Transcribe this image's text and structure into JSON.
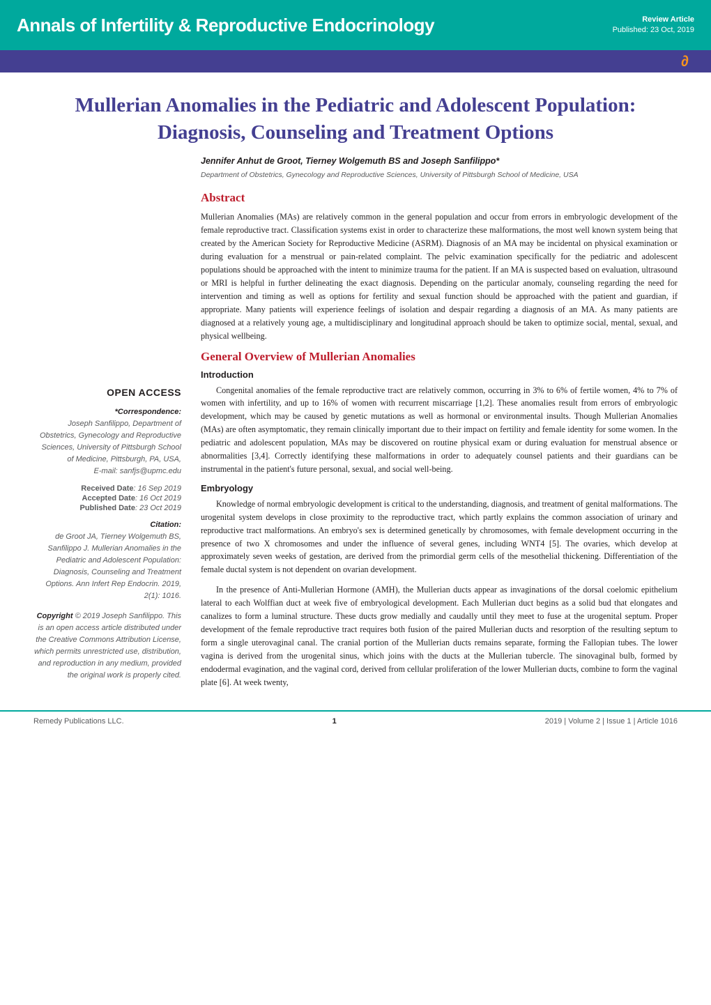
{
  "header": {
    "journal": "Annals of Infertility & Reproductive Endocrinology",
    "article_type": "Review Article",
    "published_line": "Published: 23 Oct, 2019",
    "oa_glyph": "∂"
  },
  "title": "Mullerian Anomalies in the Pediatric and Adolescent Population: Diagnosis, Counseling and Treatment Options",
  "authors": "Jennifer Anhut de Groot, Tierney Wolgemuth BS and Joseph Sanfilippo*",
  "affiliation": "Department of Obstetrics, Gynecology and Reproductive Sciences, University of Pittsburgh School of Medicine, USA",
  "abstract": {
    "heading": "Abstract",
    "text": "Mullerian Anomalies (MAs) are relatively common in the general population and occur from errors in embryologic development of the female reproductive tract. Classification systems exist in order to characterize these malformations, the most well known system being that created by the American Society for Reproductive Medicine (ASRM). Diagnosis of an MA may be incidental on physical examination or during evaluation for a menstrual or pain-related complaint. The pelvic examination specifically for the pediatric and adolescent populations should be approached with the intent to minimize trauma for the patient. If an MA is suspected based on evaluation, ultrasound or MRI is helpful in further delineating the exact diagnosis. Depending on the particular anomaly, counseling regarding the need for intervention and timing as well as options for fertility and sexual function should be approached with the patient and guardian, if appropriate. Many patients will experience feelings of isolation and despair regarding a diagnosis of an MA. As many patients are diagnosed at a relatively young age, a multidisciplinary and longitudinal approach should be taken to optimize social, mental, sexual, and physical wellbeing."
  },
  "overview": {
    "heading": "General Overview of Mullerian Anomalies",
    "intro_label": "Introduction",
    "intro_text": "Congenital anomalies of the female reproductive tract are relatively common, occurring in 3% to 6% of fertile women, 4% to 7% of women with infertility, and up to 16% of women with recurrent miscarriage [1,2]. These anomalies result from errors of embryologic development, which may be caused by genetic mutations as well as hormonal or environmental insults. Though Mullerian Anomalies (MAs) are often asymptomatic, they remain clinically important due to their impact on fertility and female identity for some women. In the pediatric and adolescent population, MAs may be discovered on routine physical exam or during evaluation for menstrual absence or abnormalities [3,4]. Correctly identifying these malformations in order to adequately counsel patients and their guardians can be instrumental in the patient's future personal, sexual, and social well-being.",
    "embryology_label": "Embryology",
    "embryology_p1": "Knowledge of normal embryologic development is critical to the understanding, diagnosis, and treatment of genital malformations. The urogenital system develops in close proximity to the reproductive tract, which partly explains the common association of urinary and reproductive tract malformations. An embryo's sex is determined genetically by chromosomes, with female development occurring in the presence of two X chromosomes and under the influence of several genes, including WNT4 [5]. The ovaries, which develop at approximately seven weeks of gestation, are derived from the primordial germ cells of the mesothelial thickening. Differentiation of the female ductal system is not dependent on ovarian development.",
    "embryology_p2": "In the presence of Anti-Mullerian Hormone (AMH), the Mullerian ducts appear as invaginations of the dorsal coelomic epithelium lateral to each Wolffian duct at week five of embryological development. Each Mullerian duct begins as a solid bud that elongates and canalizes to form a luminal structure. These ducts grow medially and caudally until they meet to fuse at the urogenital septum. Proper development of the female reproductive tract requires both fusion of the paired Mullerian ducts and resorption of the resulting septum to form a single uterovaginal canal. The cranial portion of the Mullerian ducts remains separate, forming the Fallopian tubes. The lower vagina is derived from the urogenital sinus, which joins with the ducts at the Mullerian tubercle. The sinovaginal bulb, formed by endodermal evagination, and the vaginal cord, derived from cellular proliferation of the lower Mullerian ducts, combine to form the vaginal plate [6]. At week twenty,"
  },
  "sidebar": {
    "open_access": "OPEN ACCESS",
    "correspondence_label": "*Correspondence:",
    "correspondence_body": "Joseph Sanfilippo, Department of Obstetrics, Gynecology and Reproductive Sciences, University of Pittsburgh School of Medicine, Pittsburgh, PA, USA,",
    "email_label": "E-mail:",
    "email_value": "sanfjs@upmc.edu",
    "received_label": "Received Date",
    "received_value": ": 16 Sep 2019",
    "accepted_label": "Accepted Date",
    "accepted_value": ": 16 Oct 2019",
    "published_label": "Published Date",
    "published_value": ": 23 Oct 2019",
    "citation_label": "Citation:",
    "citation_body": "de Groot JA, Tierney Wolgemuth BS, Sanfilippo J. Mullerian Anomalies in the Pediatric and Adolescent Population: Diagnosis, Counseling and Treatment Options. Ann Infert Rep Endocrin. 2019, 2(1): 1016.",
    "copyright_label": "Copyright",
    "copyright_body": " © 2019 Joseph Sanfilippo. This is an open access article distributed under the Creative Commons Attribution License, which permits unrestricted use, distribution, and reproduction in any medium, provided the original work is properly cited."
  },
  "footer": {
    "left": "Remedy Publications LLC.",
    "page": "1",
    "right": "2019 | Volume 2 | Issue 1 | Article 1016"
  }
}
